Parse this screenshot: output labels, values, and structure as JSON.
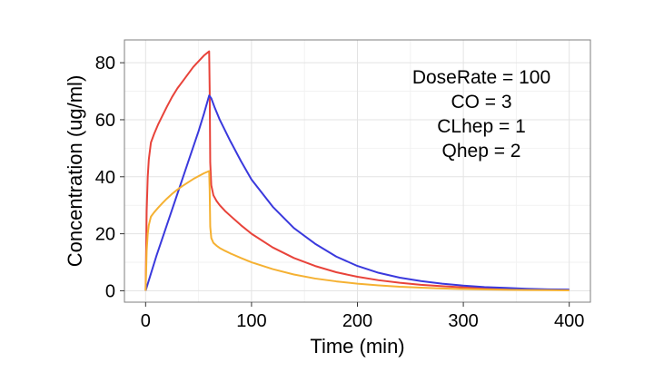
{
  "chart_data": {
    "type": "line",
    "title": "",
    "xlabel": "Time (min)",
    "ylabel": "Concentration (ug/ml)",
    "xlim": [
      -20,
      420
    ],
    "ylim": [
      -4,
      88
    ],
    "xticks": [
      0,
      100,
      200,
      300,
      400
    ],
    "yticks": [
      0,
      20,
      40,
      60,
      80
    ],
    "grid": true,
    "legend": "none",
    "annotations": [
      "DoseRate = 100",
      "CO = 3",
      "CLhep = 1",
      "Qhep = 2"
    ],
    "series": [
      {
        "color": "#e8433a",
        "x": [
          0,
          1,
          2,
          3,
          5,
          8,
          12,
          16,
          20,
          25,
          30,
          35,
          40,
          45,
          50,
          55,
          60,
          60.5,
          61,
          62,
          64,
          67,
          70,
          75,
          80,
          90,
          100,
          120,
          140,
          160,
          180,
          200,
          220,
          240,
          260,
          280,
          300,
          320,
          340,
          360,
          380,
          400
        ],
        "y": [
          0,
          28,
          40,
          46,
          52,
          55,
          58.5,
          61.5,
          64.5,
          68,
          71,
          73.5,
          76,
          78.5,
          80.5,
          82.5,
          84,
          70,
          45,
          37,
          33.5,
          31.5,
          30,
          28,
          26.3,
          23,
          20,
          15.2,
          11.5,
          8.7,
          6.5,
          4.9,
          3.7,
          2.8,
          2.1,
          1.6,
          1.2,
          0.9,
          0.7,
          0.5,
          0.4,
          0.3
        ]
      },
      {
        "color": "#3a39dd",
        "x": [
          0,
          5,
          10,
          15,
          20,
          25,
          30,
          35,
          40,
          45,
          50,
          55,
          60,
          62,
          65,
          70,
          80,
          90,
          100,
          120,
          140,
          160,
          180,
          200,
          220,
          240,
          260,
          280,
          300,
          320,
          340,
          360,
          380,
          400
        ],
        "y": [
          0,
          6,
          12,
          17.5,
          23,
          28.5,
          34,
          39.5,
          45,
          50.5,
          56,
          62,
          68.5,
          67.5,
          64.5,
          60,
          52.5,
          45.5,
          39,
          29.5,
          22,
          16.5,
          12,
          8.7,
          6.3,
          4.6,
          3.4,
          2.5,
          1.8,
          1.3,
          1,
          0.7,
          0.5,
          0.4
        ]
      },
      {
        "color": "#f5b132",
        "x": [
          0,
          1,
          2,
          3,
          5,
          8,
          12,
          16,
          20,
          25,
          30,
          35,
          40,
          45,
          50,
          55,
          60,
          60.5,
          61,
          62,
          64,
          67,
          70,
          75,
          80,
          90,
          100,
          120,
          140,
          160,
          180,
          200,
          220,
          240,
          260,
          280,
          300,
          320,
          340,
          360,
          380,
          400
        ],
        "y": [
          0,
          14,
          20,
          23,
          26,
          27.5,
          29.2,
          30.8,
          32.3,
          34,
          35.5,
          36.8,
          38,
          39.2,
          40.2,
          41.2,
          42,
          35,
          22.5,
          18.5,
          16.8,
          15.8,
          15,
          14,
          13.1,
          11.5,
          10,
          7.6,
          5.7,
          4.3,
          3.3,
          2.5,
          1.9,
          1.4,
          1.1,
          0.8,
          0.6,
          0.45,
          0.35,
          0.25,
          0.2,
          0.15
        ]
      }
    ]
  }
}
